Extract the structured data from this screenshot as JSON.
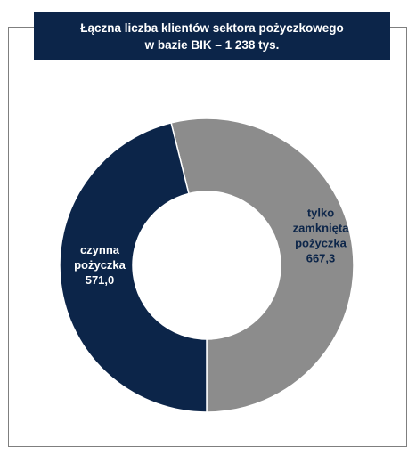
{
  "title": {
    "line1": "Łączna liczba klientów sektora pożyczkowego",
    "line2": "w bazie BIK – 1 238 tys."
  },
  "chart_data": {
    "type": "pie",
    "variant": "donut",
    "title": "Łączna liczba klientów sektora pożyczkowego w bazie BIK – 1 238 tys.",
    "slices": [
      {
        "label_lines": [
          "tylko",
          "zamknięta",
          "pożyczka"
        ],
        "value": 667.3,
        "value_label": "667,3",
        "color": "#8c8c8c",
        "label_color": "#0c2549"
      },
      {
        "label_lines": [
          "czynna",
          "pożyczka"
        ],
        "value": 571.0,
        "value_label": "571,0",
        "color": "#0c2549",
        "label_color": "#ffffff"
      }
    ],
    "legend": "none"
  }
}
